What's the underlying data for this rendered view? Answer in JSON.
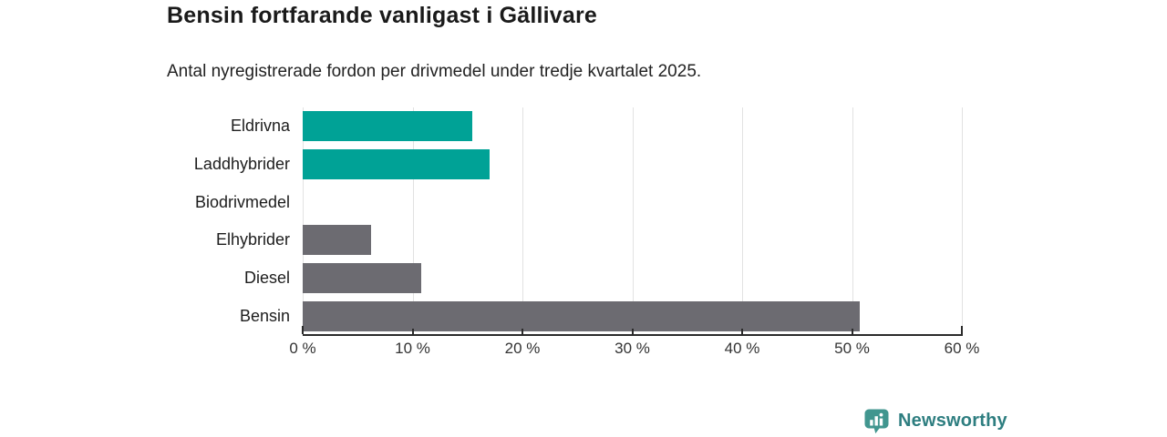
{
  "header": {
    "title": "Bensin fortfarande vanligast i Gällivare",
    "subtitle": "Antal nyregistrerade fordon per drivmedel under tredje kvartalet 2025."
  },
  "chart_data": {
    "type": "bar",
    "orientation": "horizontal",
    "title": "Bensin fortfarande vanligast i Gällivare",
    "subtitle": "Antal nyregistrerade fordon per drivmedel under tredje kvartalet 2025.",
    "categories": [
      "Eldrivna",
      "Laddhybrider",
      "Biodrivmedel",
      "Elhybrider",
      "Diesel",
      "Bensin"
    ],
    "values": [
      15.4,
      17.0,
      0,
      6.2,
      10.8,
      50.7
    ],
    "unit": "%",
    "xlim": [
      0,
      60
    ],
    "x_tick_labels": [
      "0 %",
      "10 %",
      "20 %",
      "30 %",
      "40 %",
      "50 %",
      "60 %"
    ],
    "grid": true,
    "legend": false,
    "bar_colors": [
      "#00a296",
      "#00a296",
      "#6c6b71",
      "#6c6b71",
      "#6c6b71",
      "#6c6b71"
    ],
    "accent_teal": "#00a296",
    "neutral_gray": "#6c6b71"
  },
  "branding": {
    "logo_text": "Newsworthy",
    "logo_text_color": "#2e7e80",
    "logo_icon_color": "#41968f",
    "logo_icon": "bar-chart-speech-bubble-icon"
  }
}
